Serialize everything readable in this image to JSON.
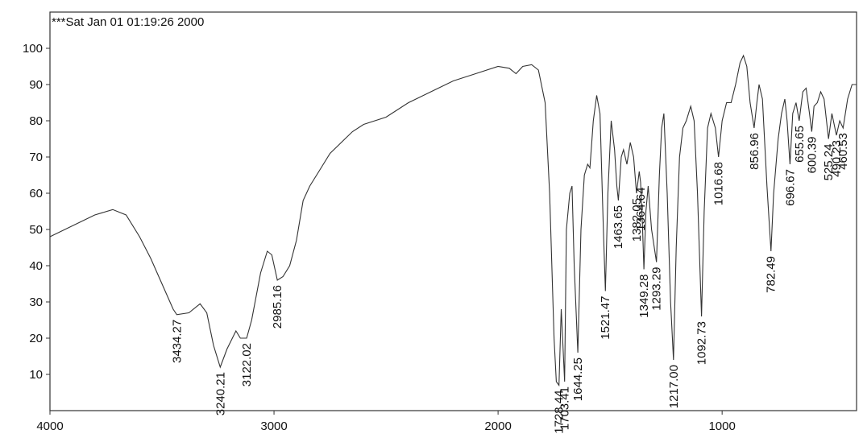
{
  "chart_data": {
    "type": "line",
    "title": "***Sat Jan 01 01:19:26 2000",
    "color": "#333333",
    "xlim": [
      4000,
      400
    ],
    "ylim": [
      0,
      110
    ],
    "xticks": [
      4000,
      3000,
      2000,
      1000
    ],
    "yticks": [
      10,
      20,
      30,
      40,
      50,
      60,
      70,
      80,
      90,
      100
    ],
    "grid": false,
    "x": [
      4000,
      3900,
      3800,
      3720,
      3660,
      3600,
      3550,
      3500,
      3450,
      3434,
      3380,
      3330,
      3300,
      3270,
      3240,
      3210,
      3170,
      3150,
      3122,
      3100,
      3060,
      3030,
      3010,
      2985,
      2960,
      2930,
      2900,
      2870,
      2840,
      2800,
      2750,
      2700,
      2650,
      2600,
      2500,
      2400,
      2300,
      2200,
      2100,
      2000,
      1950,
      1920,
      1890,
      1850,
      1820,
      1790,
      1770,
      1750,
      1740,
      1728,
      1718,
      1712,
      1703,
      1695,
      1680,
      1670,
      1660,
      1644,
      1630,
      1615,
      1600,
      1590,
      1575,
      1560,
      1545,
      1530,
      1521,
      1510,
      1495,
      1480,
      1470,
      1463,
      1450,
      1440,
      1425,
      1410,
      1395,
      1382,
      1370,
      1364,
      1355,
      1349,
      1340,
      1330,
      1315,
      1293,
      1280,
      1270,
      1260,
      1245,
      1230,
      1217,
      1205,
      1190,
      1175,
      1160,
      1140,
      1125,
      1110,
      1092,
      1080,
      1065,
      1050,
      1030,
      1016,
      1000,
      980,
      960,
      940,
      920,
      905,
      890,
      875,
      857,
      845,
      835,
      820,
      800,
      782,
      770,
      750,
      735,
      720,
      710,
      697,
      685,
      670,
      656,
      640,
      625,
      610,
      600,
      590,
      575,
      560,
      545,
      525,
      510,
      490,
      475,
      460,
      440,
      420,
      400
    ],
    "y": [
      48,
      51,
      54,
      55.5,
      54,
      48,
      42,
      35,
      28,
      26.5,
      27,
      29.5,
      27,
      18,
      12,
      17,
      22,
      20,
      20,
      25,
      38,
      44,
      43,
      36,
      37,
      40,
      47,
      58,
      62,
      66,
      71,
      74,
      77,
      79,
      81,
      85,
      88,
      91,
      93,
      95,
      94.5,
      93,
      95,
      95.5,
      94,
      85,
      60,
      20,
      8,
      7,
      28,
      20,
      8,
      50,
      60,
      62,
      40,
      16,
      50,
      65,
      68,
      67,
      80,
      87,
      82,
      50,
      33,
      60,
      80,
      72,
      62,
      58,
      70,
      72,
      68,
      74,
      70,
      60,
      66,
      63,
      50,
      39,
      55,
      62,
      50,
      41,
      65,
      78,
      82,
      60,
      30,
      14,
      45,
      70,
      78,
      80,
      84,
      80,
      60,
      26,
      55,
      78,
      82,
      78,
      70,
      80,
      85,
      85,
      90,
      96,
      98,
      95,
      85,
      78,
      85,
      90,
      86,
      62,
      44,
      60,
      75,
      82,
      86,
      80,
      68,
      82,
      85,
      80,
      88,
      89,
      82,
      77,
      84,
      85,
      88,
      86,
      75,
      82,
      76,
      80,
      78,
      86,
      90,
      90
    ],
    "peaks": [
      {
        "value": 3434.27,
        "label": "3434.27",
        "y": 26.5
      },
      {
        "value": 3240.21,
        "label": "3240.21",
        "y": 12
      },
      {
        "value": 3122.02,
        "label": "3122.02",
        "y": 20
      },
      {
        "value": 2985.16,
        "label": "2985.16",
        "y": 36
      },
      {
        "value": 1728.44,
        "label": "1728.44",
        "y": 7
      },
      {
        "value": 1703.41,
        "label": "1703.41",
        "y": 8
      },
      {
        "value": 1644.25,
        "label": "1644.25",
        "y": 16
      },
      {
        "value": 1521.47,
        "label": "1521.47",
        "y": 33
      },
      {
        "value": 1463.65,
        "label": "1463.65",
        "y": 58
      },
      {
        "value": 1382.05,
        "label": "1382.05",
        "y": 60
      },
      {
        "value": 1364.64,
        "label": "1364.64",
        "y": 63
      },
      {
        "value": 1349.28,
        "label": "1349.28",
        "y": 39
      },
      {
        "value": 1293.29,
        "label": "1293.29",
        "y": 41
      },
      {
        "value": 1217.0,
        "label": "1217.00",
        "y": 14
      },
      {
        "value": 1092.73,
        "label": "1092.73",
        "y": 26
      },
      {
        "value": 1016.68,
        "label": "1016.68",
        "y": 70
      },
      {
        "value": 856.96,
        "label": "856.96",
        "y": 78
      },
      {
        "value": 782.49,
        "label": "782.49",
        "y": 44
      },
      {
        "value": 696.67,
        "label": "696.67",
        "y": 68
      },
      {
        "value": 655.65,
        "label": "655.65",
        "y": 80
      },
      {
        "value": 600.39,
        "label": "600.39",
        "y": 77
      },
      {
        "value": 525.24,
        "label": "525.24",
        "y": 75
      },
      {
        "value": 490.23,
        "label": "490.23",
        "y": 76
      },
      {
        "value": 460.53,
        "label": "460.53",
        "y": 78
      }
    ]
  }
}
